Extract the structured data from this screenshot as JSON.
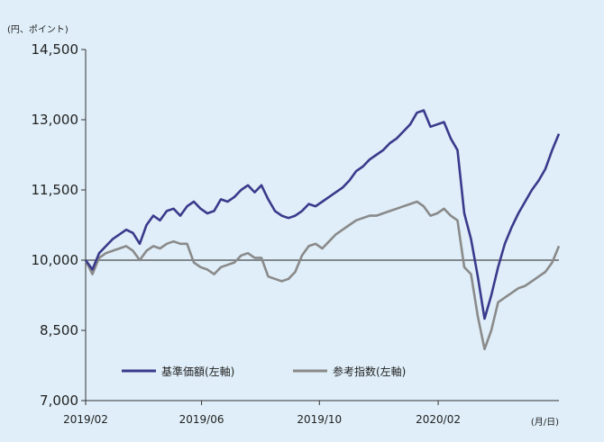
{
  "chart_data": {
    "type": "line",
    "y_unit_label": "(円、ポイント)",
    "x_unit_label": "(月/日)",
    "ylim": [
      7000,
      14500
    ],
    "yticks": [
      "14,500",
      "13,000",
      "11,500",
      "10,000",
      "8,500",
      "7,000"
    ],
    "ytick_values": [
      14500,
      13000,
      11500,
      10000,
      8500,
      7000
    ],
    "xticks": [
      "2019/02",
      "2019/06",
      "2019/10",
      "2020/02"
    ],
    "xtick_dates": [
      "2019-02-01",
      "2019-06-01",
      "2019-10-01",
      "2020-02-01"
    ],
    "x_range": [
      "2019-02-01",
      "2020-06-05"
    ],
    "reference_line": 10000,
    "grid": false,
    "legend_position": "bottom-center",
    "series": [
      {
        "name": "基準価額(左軸)",
        "color": "#3a3a8c",
        "points": [
          [
            "2019-02-01",
            10000
          ],
          [
            "2019-02-08",
            9800
          ],
          [
            "2019-02-15",
            10150
          ],
          [
            "2019-02-22",
            10300
          ],
          [
            "2019-03-01",
            10450
          ],
          [
            "2019-03-08",
            10550
          ],
          [
            "2019-03-15",
            10650
          ],
          [
            "2019-03-22",
            10580
          ],
          [
            "2019-03-29",
            10350
          ],
          [
            "2019-04-05",
            10750
          ],
          [
            "2019-04-12",
            10950
          ],
          [
            "2019-04-19",
            10850
          ],
          [
            "2019-04-26",
            11050
          ],
          [
            "2019-05-03",
            11100
          ],
          [
            "2019-05-10",
            10950
          ],
          [
            "2019-05-17",
            11150
          ],
          [
            "2019-05-24",
            11250
          ],
          [
            "2019-05-31",
            11100
          ],
          [
            "2019-06-07",
            11000
          ],
          [
            "2019-06-14",
            11050
          ],
          [
            "2019-06-21",
            11300
          ],
          [
            "2019-06-28",
            11250
          ],
          [
            "2019-07-05",
            11350
          ],
          [
            "2019-07-12",
            11500
          ],
          [
            "2019-07-19",
            11600
          ],
          [
            "2019-07-26",
            11450
          ],
          [
            "2019-08-02",
            11600
          ],
          [
            "2019-08-09",
            11300
          ],
          [
            "2019-08-16",
            11050
          ],
          [
            "2019-08-23",
            10950
          ],
          [
            "2019-08-30",
            10900
          ],
          [
            "2019-09-06",
            10950
          ],
          [
            "2019-09-13",
            11050
          ],
          [
            "2019-09-20",
            11200
          ],
          [
            "2019-09-27",
            11150
          ],
          [
            "2019-10-04",
            11250
          ],
          [
            "2019-10-11",
            11350
          ],
          [
            "2019-10-18",
            11450
          ],
          [
            "2019-10-25",
            11550
          ],
          [
            "2019-11-01",
            11700
          ],
          [
            "2019-11-08",
            11900
          ],
          [
            "2019-11-15",
            12000
          ],
          [
            "2019-11-22",
            12150
          ],
          [
            "2019-11-29",
            12250
          ],
          [
            "2019-12-06",
            12350
          ],
          [
            "2019-12-13",
            12500
          ],
          [
            "2019-12-20",
            12600
          ],
          [
            "2019-12-27",
            12750
          ],
          [
            "2020-01-03",
            12900
          ],
          [
            "2020-01-10",
            13150
          ],
          [
            "2020-01-17",
            13200
          ],
          [
            "2020-01-24",
            12850
          ],
          [
            "2020-01-31",
            12900
          ],
          [
            "2020-02-07",
            12950
          ],
          [
            "2020-02-14",
            12600
          ],
          [
            "2020-02-21",
            12350
          ],
          [
            "2020-02-28",
            11000
          ],
          [
            "2020-03-06",
            10450
          ],
          [
            "2020-03-13",
            9650
          ],
          [
            "2020-03-20",
            8750
          ],
          [
            "2020-03-27",
            9250
          ],
          [
            "2020-04-03",
            9850
          ],
          [
            "2020-04-10",
            10350
          ],
          [
            "2020-04-17",
            10700
          ],
          [
            "2020-04-24",
            11000
          ],
          [
            "2020-05-01",
            11250
          ],
          [
            "2020-05-08",
            11500
          ],
          [
            "2020-05-15",
            11700
          ],
          [
            "2020-05-22",
            11950
          ],
          [
            "2020-05-29",
            12350
          ],
          [
            "2020-06-05",
            12700
          ]
        ]
      },
      {
        "name": "参考指数(左軸)",
        "color": "#8a8a8a",
        "points": [
          [
            "2019-02-01",
            10000
          ],
          [
            "2019-02-08",
            9700
          ],
          [
            "2019-02-15",
            10050
          ],
          [
            "2019-02-22",
            10150
          ],
          [
            "2019-03-01",
            10200
          ],
          [
            "2019-03-08",
            10250
          ],
          [
            "2019-03-15",
            10300
          ],
          [
            "2019-03-22",
            10200
          ],
          [
            "2019-03-29",
            10000
          ],
          [
            "2019-04-05",
            10200
          ],
          [
            "2019-04-12",
            10300
          ],
          [
            "2019-04-19",
            10250
          ],
          [
            "2019-04-26",
            10350
          ],
          [
            "2019-05-03",
            10400
          ],
          [
            "2019-05-10",
            10350
          ],
          [
            "2019-05-17",
            10350
          ],
          [
            "2019-05-24",
            9950
          ],
          [
            "2019-05-31",
            9850
          ],
          [
            "2019-06-07",
            9800
          ],
          [
            "2019-06-14",
            9700
          ],
          [
            "2019-06-21",
            9850
          ],
          [
            "2019-06-28",
            9900
          ],
          [
            "2019-07-05",
            9950
          ],
          [
            "2019-07-12",
            10100
          ],
          [
            "2019-07-19",
            10150
          ],
          [
            "2019-07-26",
            10050
          ],
          [
            "2019-08-02",
            10050
          ],
          [
            "2019-08-09",
            9650
          ],
          [
            "2019-08-16",
            9600
          ],
          [
            "2019-08-23",
            9550
          ],
          [
            "2019-08-30",
            9600
          ],
          [
            "2019-09-06",
            9750
          ],
          [
            "2019-09-13",
            10100
          ],
          [
            "2019-09-20",
            10300
          ],
          [
            "2019-09-27",
            10350
          ],
          [
            "2019-10-04",
            10250
          ],
          [
            "2019-10-11",
            10400
          ],
          [
            "2019-10-18",
            10550
          ],
          [
            "2019-10-25",
            10650
          ],
          [
            "2019-11-01",
            10750
          ],
          [
            "2019-11-08",
            10850
          ],
          [
            "2019-11-15",
            10900
          ],
          [
            "2019-11-22",
            10950
          ],
          [
            "2019-11-29",
            10950
          ],
          [
            "2019-12-06",
            11000
          ],
          [
            "2019-12-13",
            11050
          ],
          [
            "2019-12-20",
            11100
          ],
          [
            "2019-12-27",
            11150
          ],
          [
            "2020-01-03",
            11200
          ],
          [
            "2020-01-10",
            11250
          ],
          [
            "2020-01-17",
            11150
          ],
          [
            "2020-01-24",
            10950
          ],
          [
            "2020-01-31",
            11000
          ],
          [
            "2020-02-07",
            11100
          ],
          [
            "2020-02-14",
            10950
          ],
          [
            "2020-02-21",
            10850
          ],
          [
            "2020-02-28",
            9850
          ],
          [
            "2020-03-06",
            9700
          ],
          [
            "2020-03-13",
            8800
          ],
          [
            "2020-03-20",
            8100
          ],
          [
            "2020-03-27",
            8500
          ],
          [
            "2020-04-03",
            9100
          ],
          [
            "2020-04-10",
            9200
          ],
          [
            "2020-04-17",
            9300
          ],
          [
            "2020-04-24",
            9400
          ],
          [
            "2020-05-01",
            9450
          ],
          [
            "2020-05-08",
            9550
          ],
          [
            "2020-05-15",
            9650
          ],
          [
            "2020-05-22",
            9750
          ],
          [
            "2020-05-29",
            9950
          ],
          [
            "2020-06-05",
            10300
          ]
        ]
      }
    ]
  }
}
